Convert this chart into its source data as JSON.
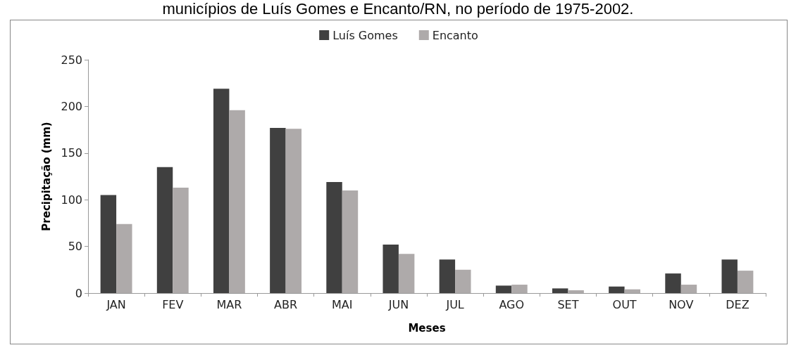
{
  "chart_data": {
    "type": "bar",
    "title": "municípios de Luís Gomes e Encanto/RN, no período de 1975-2002.",
    "xlabel": "Meses",
    "ylabel": "Precipitação (mm)",
    "categories": [
      "JAN",
      "FEV",
      "MAR",
      "ABR",
      "MAI",
      "JUN",
      "JUL",
      "AGO",
      "SET",
      "OUT",
      "NOV",
      "DEZ"
    ],
    "series": [
      {
        "name": "Luís Gomes",
        "color": "#404040",
        "values": [
          105,
          135,
          219,
          177,
          119,
          52,
          36,
          8,
          5,
          7,
          21,
          36
        ]
      },
      {
        "name": "Encanto",
        "color": "#aeaaaa",
        "values": [
          74,
          113,
          196,
          176,
          110,
          42,
          25,
          9,
          3,
          4,
          9,
          24
        ]
      }
    ],
    "ylim": [
      0,
      250
    ],
    "yticks": [
      0,
      50,
      100,
      150,
      200,
      250
    ],
    "grid": false,
    "legend": "top"
  }
}
